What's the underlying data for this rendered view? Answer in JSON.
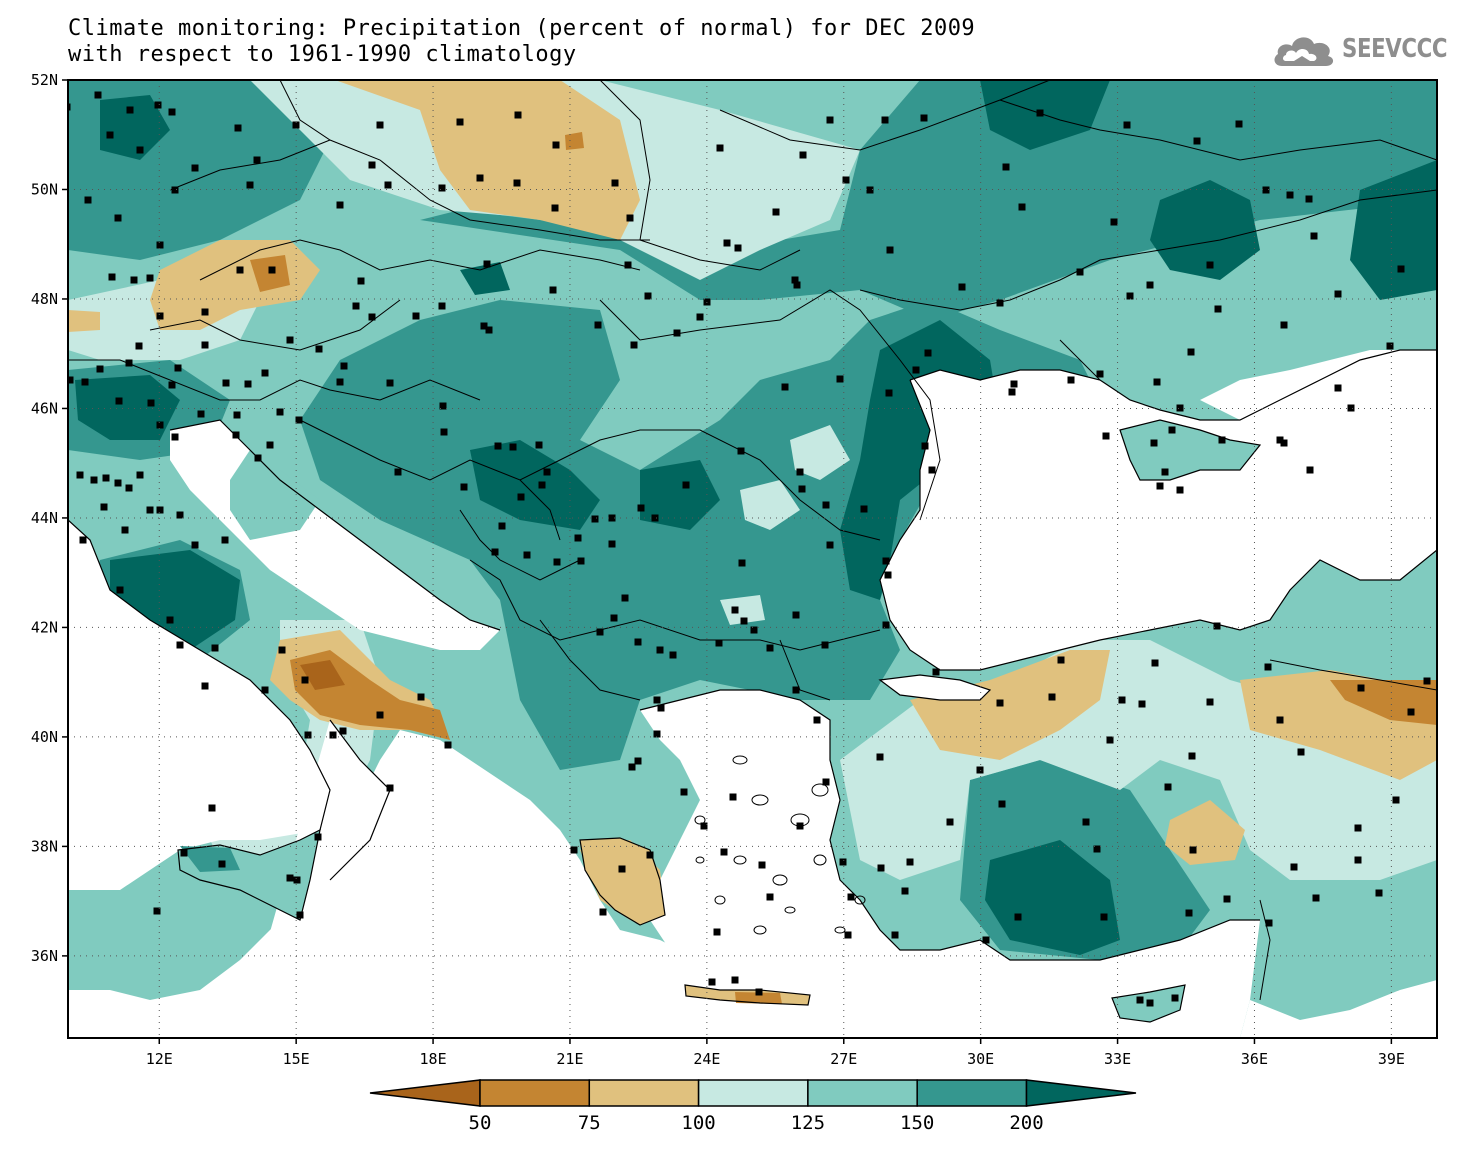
{
  "title": {
    "line1": "Climate monitoring: Precipitation (percent of normal) for DEC 2009",
    "line2": "with respect to 1961-1990 climatology"
  },
  "logo": {
    "text": "SEEVCCC",
    "icon": "cloud-logo-icon"
  },
  "axes": {
    "lat_ticks": [
      "52N",
      "50N",
      "48N",
      "46N",
      "44N",
      "42N",
      "40N",
      "38N",
      "36N"
    ],
    "lon_ticks": [
      "12E",
      "15E",
      "18E",
      "21E",
      "24E",
      "27E",
      "30E",
      "33E",
      "36E",
      "39E"
    ],
    "lon_range": [
      10,
      40
    ],
    "lat_range": [
      34.5,
      52
    ],
    "grid": "dotted"
  },
  "colorbar": {
    "labels": [
      "50",
      "75",
      "100",
      "125",
      "150",
      "200"
    ],
    "colors": [
      "#a9641b",
      "#c48532",
      "#e0c17e",
      "#c7e9e2",
      "#80cbbf",
      "#35978f",
      "#01665e"
    ]
  },
  "colors": {
    "sea": "#ffffff",
    "base_land": "#80cbbf"
  }
}
